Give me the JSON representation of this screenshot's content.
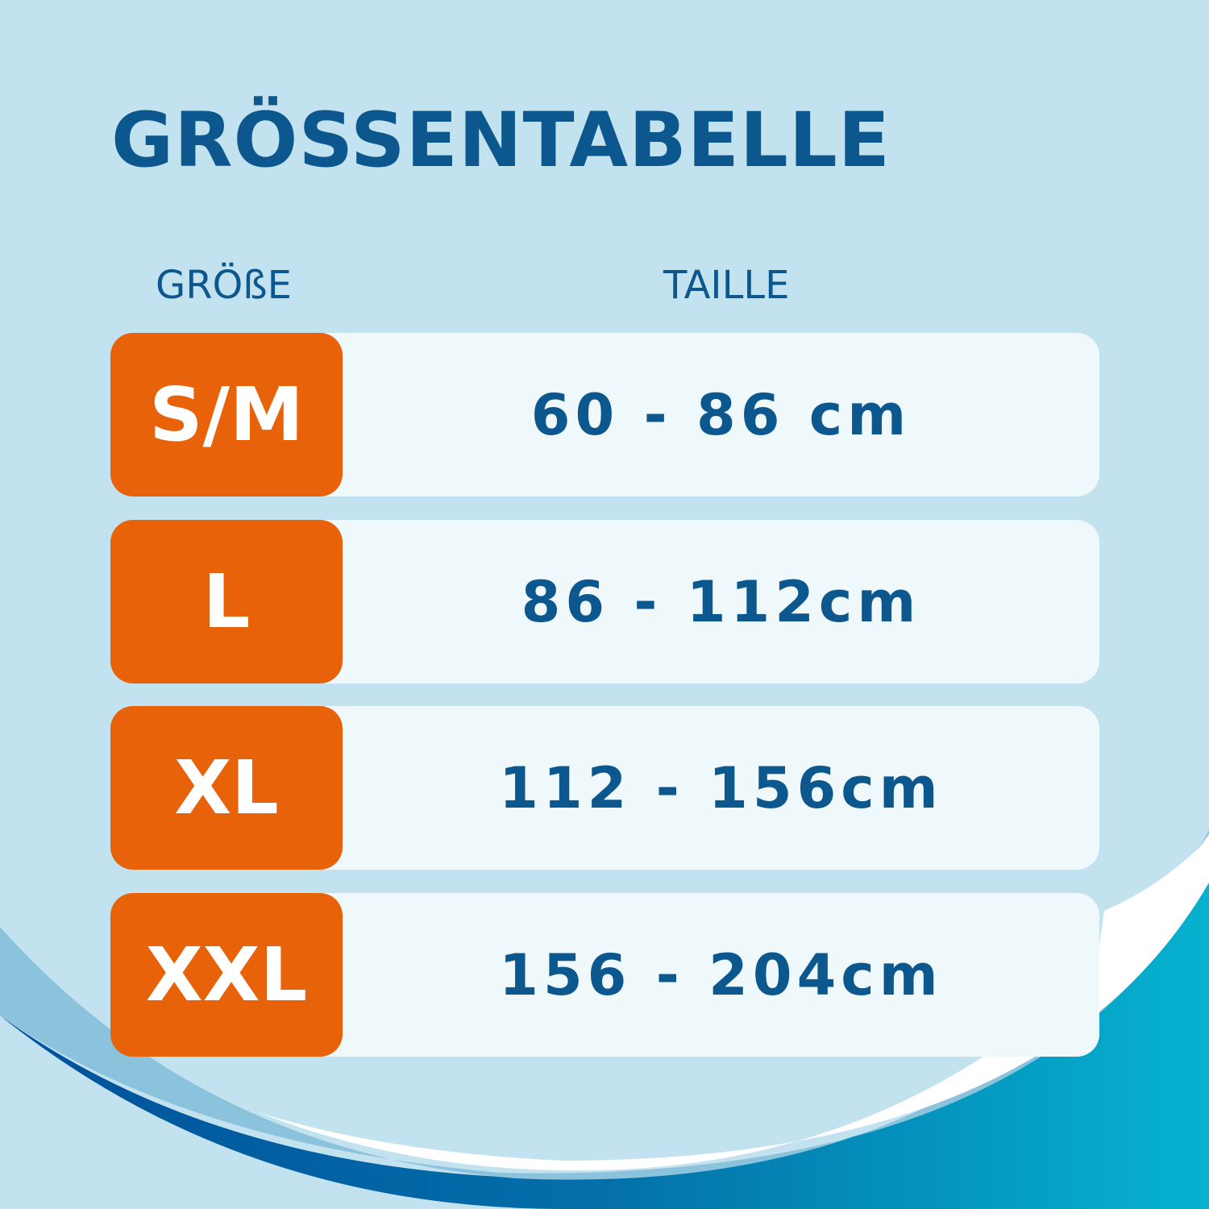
{
  "title": "GRÖSSENTABELLE",
  "headers": {
    "size": "GRÖßE",
    "waist": "TAILLE"
  },
  "rows": [
    {
      "size": "S/M",
      "waist": "60 - 86 cm"
    },
    {
      "size": "L",
      "waist": "86 - 112cm"
    },
    {
      "size": "XL",
      "waist": "112 - 156cm"
    },
    {
      "size": "XXL",
      "waist": "156 - 204cm"
    }
  ],
  "colors": {
    "background": "#c3e2ef",
    "title": "#0d578f",
    "size_badge": "#e8620a",
    "row": "#eff8fb",
    "wave_dark": "#00509a",
    "wave_teal": "#06b2cf"
  }
}
